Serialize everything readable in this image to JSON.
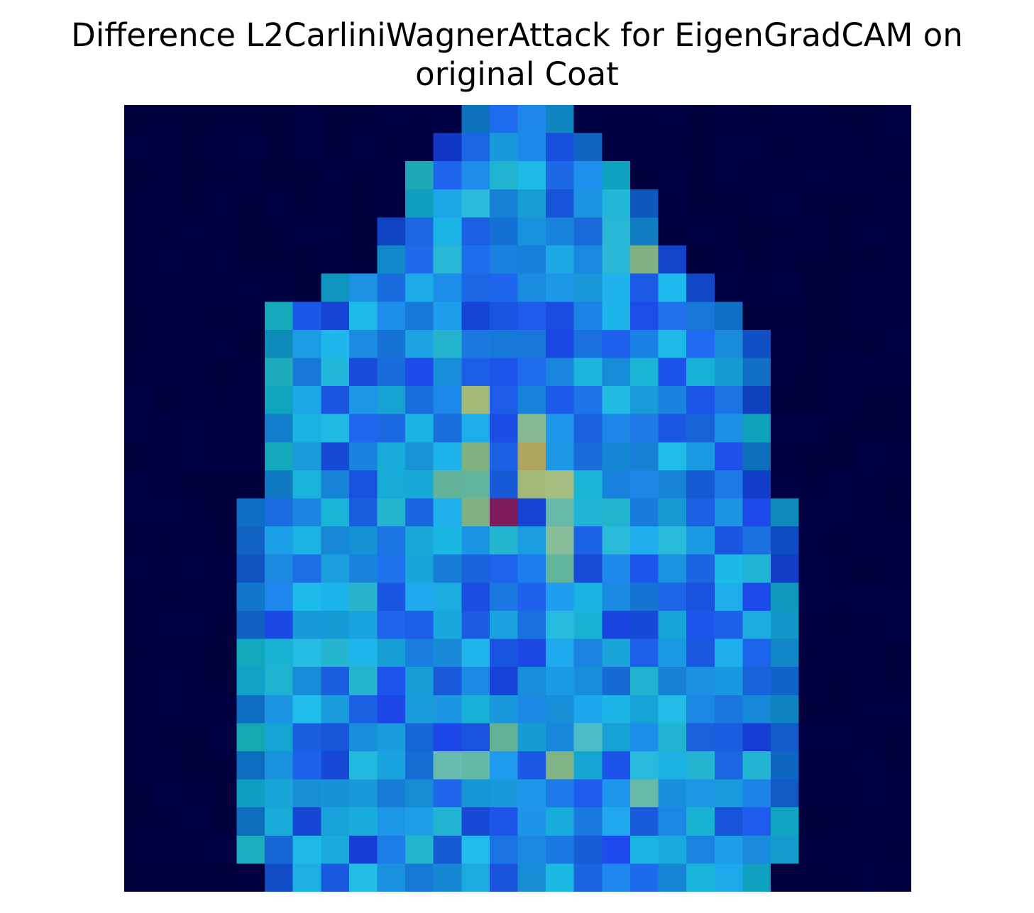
{
  "title": {
    "line1": "Difference L2CarliniWagnerAttack for EigenGradCAM on",
    "line2": "original Coat"
  },
  "image": {
    "kind": "28x28 heatmap overlay on grayscale coat silhouette",
    "colormap": "jet blended with dark navy background",
    "background_color": "#00004a"
  }
}
